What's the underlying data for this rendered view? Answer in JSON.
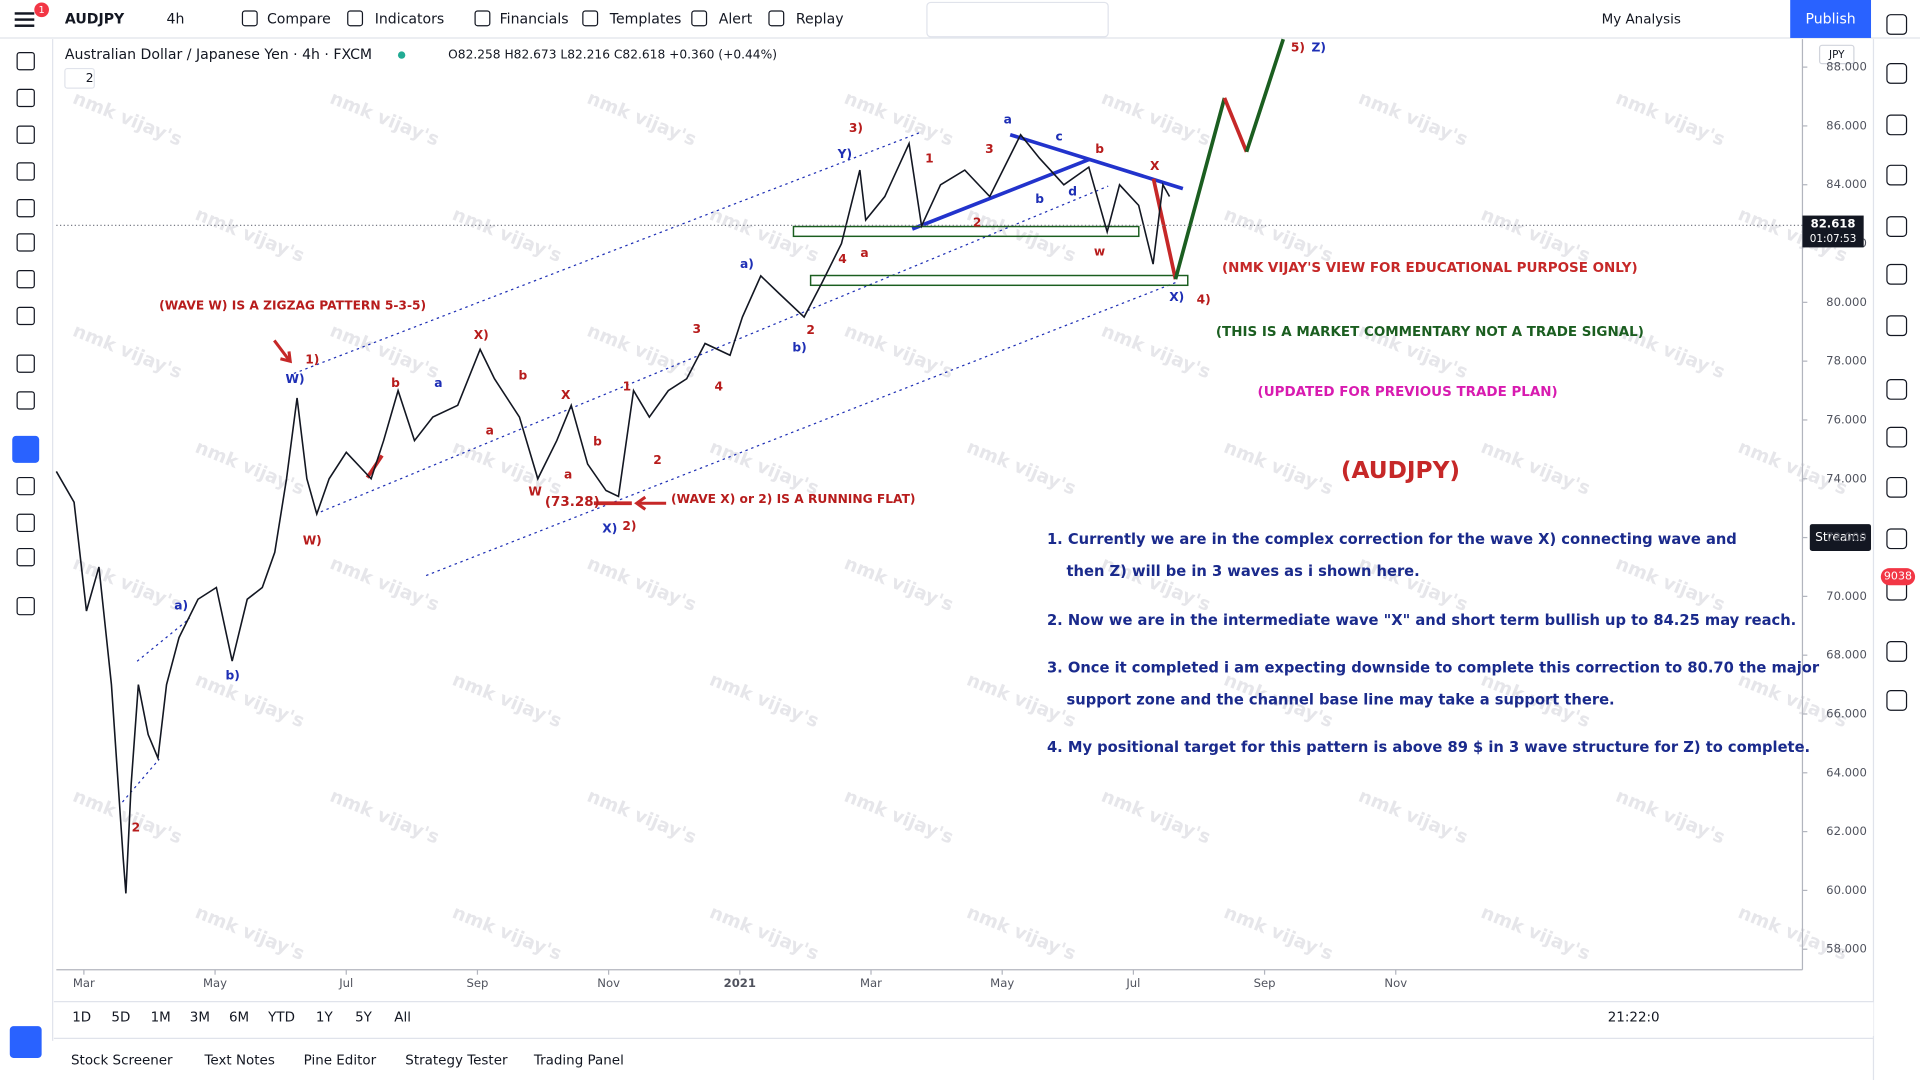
{
  "toolbar": {
    "symbol": "AUDJPY",
    "interval": "4h",
    "items": [
      "Compare",
      "Indicators",
      "Financials",
      "Templates",
      "Alert",
      "Replay"
    ],
    "layout": "My Analysis",
    "publish": "Publish",
    "notification_badge": "1"
  },
  "legend": {
    "title": "Australian Dollar / Japanese Yen · 4h · FXCM",
    "ohlc": "O82.258 H82.673 L82.216 C82.618 +0.360 (+0.44%)",
    "collapse": "2"
  },
  "chart_data": {
    "type": "line",
    "color": "#131722",
    "grid": false,
    "x": [
      -0.42,
      -0.15,
      0.04,
      0.23,
      0.42,
      0.6,
      0.64,
      0.72,
      0.83,
      0.98,
      1.13,
      1.26,
      1.45,
      1.74,
      2.02,
      2.26,
      2.49,
      2.72,
      2.91,
      3.09,
      3.25,
      3.4,
      3.55,
      3.74,
      4.0,
      4.38,
      4.57,
      4.79,
      5.04,
      5.32,
      5.7,
      6.04,
      6.26,
      6.64,
      6.92,
      7.21,
      7.43,
      7.68,
      7.96,
      8.15,
      8.38,
      8.62,
      8.91,
      9.19,
      9.47,
      9.85,
      10.04,
      10.32,
      10.6,
      10.98,
      11.26,
      11.55,
      11.83,
      11.92,
      12.21,
      12.58,
      12.77,
      13.06,
      13.43,
      13.81,
      14.28,
      14.57,
      14.94,
      15.32,
      15.6,
      15.79,
      16.08,
      16.3,
      16.45,
      16.55
    ],
    "values": [
      74.25,
      73.2,
      69.5,
      71,
      67,
      61.1,
      59.9,
      63.6,
      67,
      65.3,
      64.5,
      67,
      68.6,
      69.9,
      70.3,
      67.8,
      69.9,
      70.3,
      71.5,
      74,
      76.75,
      74,
      72.8,
      74,
      74.9,
      74,
      75.3,
      77,
      75.3,
      76.1,
      76.5,
      78.4,
      77.4,
      76.1,
      74,
      75.3,
      76.5,
      74.5,
      73.6,
      73.4,
      77,
      76.1,
      77,
      77.4,
      78.6,
      78.2,
      79.5,
      80.9,
      80.3,
      79.5,
      80.7,
      82,
      84.5,
      82.8,
      83.6,
      85.4,
      82.6,
      84,
      84.5,
      83.6,
      85.7,
      84.9,
      84,
      84.6,
      82.4,
      84,
      83.3,
      81.3,
      84,
      83.6
    ],
    "xlim": [
      -0.42,
      26.2
    ],
    "xticks": [
      {
        "value": 0,
        "label": "Mar"
      },
      {
        "value": 2,
        "label": "May"
      },
      {
        "value": 4,
        "label": "Jul"
      },
      {
        "value": 6,
        "label": "Sep"
      },
      {
        "value": 8,
        "label": "Nov"
      },
      {
        "value": 10,
        "label": "2021"
      },
      {
        "value": 12,
        "label": "Mar"
      },
      {
        "value": 14,
        "label": "May"
      },
      {
        "value": 16,
        "label": "Jul"
      },
      {
        "value": 18,
        "label": "Sep"
      },
      {
        "value": 20,
        "label": "Nov"
      }
    ],
    "ylim": [
      57.3,
      88.95
    ],
    "yticks": [
      {
        "value": 58,
        "label": "58.000"
      },
      {
        "value": 60,
        "label": "60.000"
      },
      {
        "value": 62,
        "label": "62.000"
      },
      {
        "value": 64,
        "label": "64.000"
      },
      {
        "value": 66,
        "label": "66.000"
      },
      {
        "value": 68,
        "label": "68.000"
      },
      {
        "value": 70,
        "label": "70.000"
      },
      {
        "value": 72,
        "label": "72.000"
      },
      {
        "value": 74,
        "label": "74.000"
      },
      {
        "value": 76,
        "label": "76.000"
      },
      {
        "value": 78,
        "label": "78.000"
      },
      {
        "value": 80,
        "label": "80.000"
      },
      {
        "value": 82,
        "label": "82.000"
      },
      {
        "value": 84,
        "label": "84.000"
      },
      {
        "value": 86,
        "label": "86.000"
      },
      {
        "value": 88,
        "label": "88.000"
      }
    ],
    "currency": "JPY",
    "last_price": 82.618,
    "countdown": "01:07:53"
  },
  "annotations": {
    "zigzag": "(WAVE W) IS A ZIGZAG PATTERN 5-3-5)",
    "running_flat": "(WAVE X) or 2) IS A RUNNING FLAT)",
    "low": "(73.28)",
    "view": "(NMK VIJAY'S VIEW FOR EDUCATIONAL PURPOSE ONLY)",
    "commentary": "(THIS IS A MARKET COMMENTARY NOT A TRADE SIGNAL)",
    "updated": "(UPDATED FOR PREVIOUS TRADE PLAN)",
    "symbol_title": "(AUDJPY)"
  },
  "text_notes": [
    [
      "1. Currently we are in the complex correction for the wave X) connecting wave and",
      "then Z) will be in 3 waves as i shown here."
    ],
    [
      "2. Now we are in the intermediate wave \"X\" and short term bullish up to 84.25 may reach."
    ],
    [
      "3. Once it completed i am expecting downside to complete this correction to 80.70 the major",
      "support zone and the channel base line may take a support there."
    ],
    [
      "4. My positional target for this pattern is above 89 $ in 3 wave structure for Z) to complete."
    ]
  ],
  "wave_labels": [
    "1)",
    "W)",
    "W)",
    "a)",
    "b)",
    "X)",
    "W",
    "X)",
    "2)",
    "a)",
    "b)",
    "3)",
    "Y)",
    "a",
    "b",
    "c",
    "d",
    "b",
    "a",
    "w",
    "X",
    "X)",
    "4)",
    "5)",
    "Z)",
    "2",
    "a",
    "b",
    "a",
    "b",
    "X",
    "a",
    "b",
    "2",
    "1",
    "3",
    "4",
    "1",
    "3",
    "2",
    "4",
    "2"
  ],
  "range_buttons": [
    "1D",
    "5D",
    "1M",
    "3M",
    "6M",
    "YTD",
    "1Y",
    "5Y",
    "All"
  ],
  "clock": "21:22:0",
  "bottom_tabs": [
    "Stock Screener",
    "Text Notes",
    "Pine Editor",
    "Strategy Tester",
    "Trading Panel"
  ],
  "right_panel": {
    "streams": "Streams",
    "badge": "9038"
  },
  "watermark": "nmk vijay's"
}
